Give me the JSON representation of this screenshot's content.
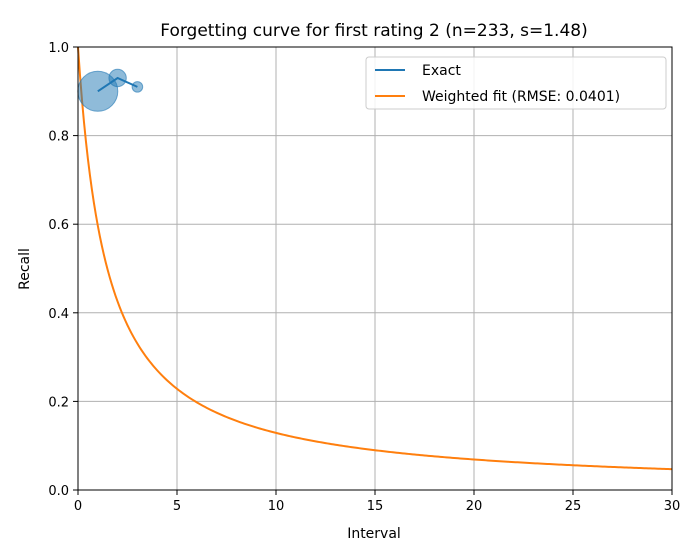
{
  "chart_data": {
    "type": "line",
    "title": "Forgetting curve for first rating 2 (n=233, s=1.48)",
    "xlabel": "Interval",
    "ylabel": "Recall",
    "xlim": [
      0,
      30
    ],
    "ylim": [
      0,
      1
    ],
    "xticks": [
      "0",
      "5",
      "10",
      "15",
      "20",
      "25",
      "30"
    ],
    "yticks": [
      "0.0",
      "0.2",
      "0.4",
      "0.6",
      "0.8",
      "1.0"
    ],
    "grid": true,
    "legend_position": "top-right",
    "series": [
      {
        "name": "Exact",
        "kind": "line-with-weighted-points",
        "color": "#1f77b4",
        "x": [
          1,
          2,
          3
        ],
        "y": [
          0.9,
          0.93,
          0.91
        ],
        "weight": [
          185,
          35,
          13
        ]
      },
      {
        "name": "Weighted fit (RMSE: 0.0401)",
        "kind": "curve",
        "color": "#ff7f0e",
        "formula": "1 / (1 + x / s)",
        "s": 1.48
      }
    ]
  }
}
